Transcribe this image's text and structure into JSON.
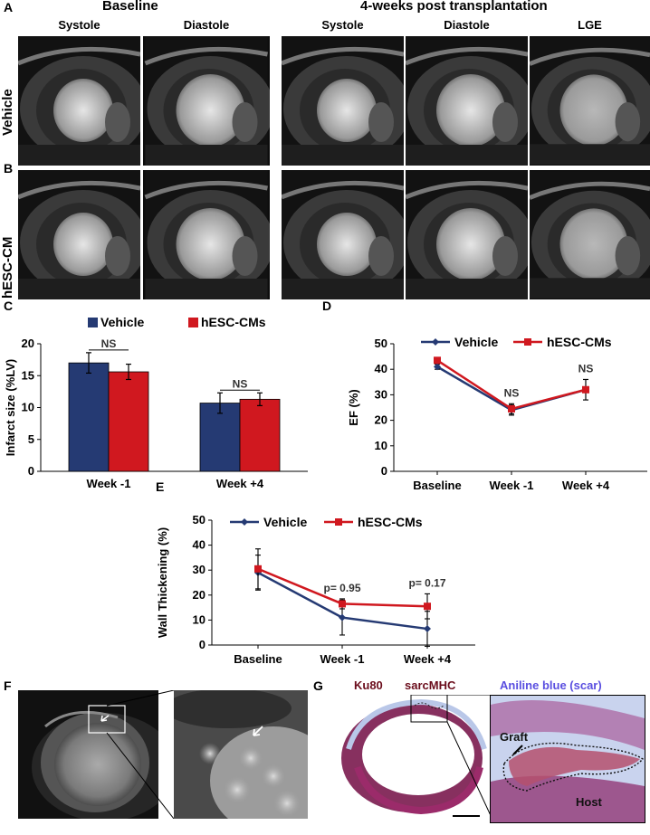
{
  "panel_labels": {
    "A": "A",
    "B": "B",
    "C": "C",
    "D": "D",
    "E": "E",
    "F": "F",
    "G": "G"
  },
  "mri": {
    "baseline_title": "Baseline",
    "post_title": "4-weeks post transplantation",
    "columns": [
      "Systole",
      "Diastole",
      "Systole",
      "Diastole",
      "LGE"
    ],
    "rows": [
      "Vehicle",
      "hESC-CM"
    ]
  },
  "colors": {
    "vehicle": "#253a73",
    "hesc": "#d0181f",
    "aniline": "#5a4fe0",
    "ku80": "#6b0d1c"
  },
  "chart_data": [
    {
      "panel": "C",
      "type": "bar",
      "categories": [
        "Week -1",
        "Week +4"
      ],
      "series": [
        {
          "name": "Vehicle",
          "values": [
            17.0,
            10.7
          ],
          "errors": [
            1.6,
            1.6
          ]
        },
        {
          "name": "hESC-CMs",
          "values": [
            15.6,
            11.3
          ],
          "errors": [
            1.2,
            1.0
          ]
        }
      ],
      "ylabel": "Infarct size (%LV)",
      "ylim": [
        0,
        20
      ],
      "yticks": [
        0,
        5,
        10,
        15,
        20
      ],
      "annotations": [
        "NS",
        "NS"
      ],
      "legend": "top"
    },
    {
      "panel": "D",
      "type": "line",
      "categories": [
        "Baseline",
        "Week -1",
        "Week +4"
      ],
      "series": [
        {
          "name": "Vehicle",
          "values": [
            41,
            24,
            32
          ],
          "errors": [
            1,
            2,
            4
          ]
        },
        {
          "name": "hESC-CMs",
          "values": [
            43.5,
            24.5,
            32
          ],
          "errors": [
            1,
            2,
            4
          ]
        }
      ],
      "ylabel": "EF (%)",
      "ylim": [
        0,
        50
      ],
      "yticks": [
        0,
        10,
        20,
        30,
        40,
        50
      ],
      "annotations": [
        "",
        "NS",
        "NS"
      ],
      "legend": "top"
    },
    {
      "panel": "E",
      "type": "line",
      "categories": [
        "Baseline",
        "Week -1",
        "Week +4"
      ],
      "series": [
        {
          "name": "Vehicle",
          "values": [
            29,
            11,
            6.5
          ],
          "errors": [
            7,
            7,
            7
          ]
        },
        {
          "name": "hESC-CMs",
          "values": [
            30.5,
            16.5,
            15.5
          ],
          "errors": [
            8,
            2,
            5
          ]
        }
      ],
      "ylabel": "Wall Thickening (%)",
      "ylim": [
        0,
        50
      ],
      "yticks": [
        0,
        10,
        20,
        30,
        40,
        50
      ],
      "annotations": [
        "",
        "p= 0.95",
        "p= 0.17"
      ],
      "legend": "top"
    }
  ],
  "histology": {
    "stain1": "Ku80",
    "stain2": "sarcMHC",
    "stain3": "Aniline blue (scar)",
    "graft": "Graft",
    "host": "Host"
  }
}
